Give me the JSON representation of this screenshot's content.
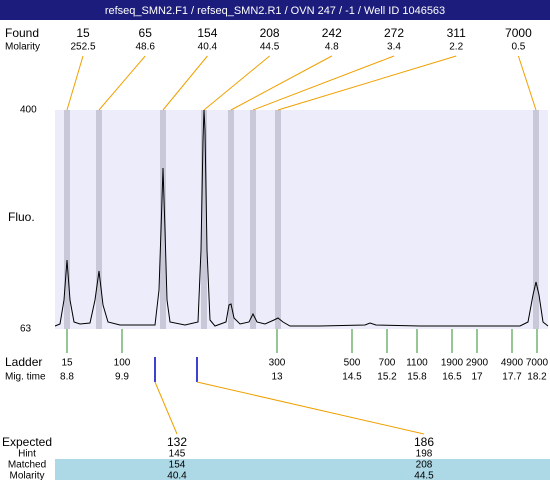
{
  "header": {
    "title": "refseq_SMN2.F1 / refseq_SMN2.R1 / OVN 247 / -1 / Well ID 1046563"
  },
  "chart_data": {
    "type": "electropherogram",
    "y_label": "Fluo.",
    "ylim": [
      63,
      400
    ],
    "yticks": [
      400,
      63
    ],
    "xlim": [
      8.56,
      18.42
    ],
    "trace": {
      "color": "#000000",
      "x": [
        8.56,
        8.66,
        8.74,
        8.8,
        8.86,
        8.94,
        9.06,
        9.26,
        9.36,
        9.44,
        9.52,
        9.62,
        9.86,
        10.26,
        10.56,
        10.64,
        10.68,
        10.72,
        10.76,
        10.8,
        10.86,
        11.16,
        11.42,
        11.48,
        11.52,
        11.54,
        11.56,
        11.6,
        11.66,
        11.76,
        11.98,
        12.04,
        12.08,
        12.14,
        12.26,
        12.44,
        12.52,
        12.6,
        12.76,
        12.94,
        13.02,
        13.12,
        13.26,
        13.86,
        14.76,
        14.86,
        14.98,
        15.86,
        17.86,
        18.02,
        18.12,
        18.18,
        18.24,
        18.32,
        18.42
      ],
      "y": [
        67.6,
        70.7,
        107.6,
        169.2,
        107.6,
        73.8,
        70.7,
        72.2,
        107.6,
        152.3,
        99.9,
        73.8,
        69.2,
        69.2,
        69.2,
        123.0,
        215.4,
        310.8,
        215.4,
        107.6,
        73.8,
        69.2,
        73.8,
        184.6,
        353.9,
        400,
        369.3,
        184.6,
        76.9,
        67.6,
        73.8,
        99.9,
        101.5,
        79.9,
        70.7,
        73.8,
        86.1,
        73.8,
        70.7,
        76.9,
        79.9,
        73.8,
        67.6,
        67.6,
        69.2,
        72.2,
        69.2,
        67.6,
        67.6,
        73.8,
        115.3,
        135.3,
        115.3,
        73.8,
        67.6
      ]
    },
    "found": {
      "label": "Found",
      "molarity_label": "Molarity",
      "sizes": [
        15,
        65,
        154,
        208,
        242,
        272,
        311,
        7000
      ],
      "molarity": [
        252.5,
        48.6,
        40.4,
        44.5,
        4.8,
        3.4,
        2.2,
        0.5
      ],
      "times": [
        8.8,
        9.44,
        10.72,
        11.54,
        12.08,
        12.52,
        13.02,
        18.18
      ]
    },
    "ladder": {
      "label": "Ladder",
      "time_label": "Mig. time",
      "sizes": [
        15,
        100,
        300,
        500,
        700,
        1100,
        1900,
        2900,
        4900,
        7000
      ],
      "times": [
        8.8,
        9.9,
        13,
        14.5,
        15.2,
        15.8,
        16.5,
        17,
        17.7,
        18.2
      ]
    },
    "expected": {
      "labels": [
        "Expected",
        "Hint",
        "Matched",
        "Molarity"
      ],
      "times": [
        10.56,
        11.4
      ],
      "columns": [
        [
          132,
          145,
          154,
          40.4
        ],
        [
          186,
          198,
          208,
          44.5
        ]
      ]
    }
  }
}
